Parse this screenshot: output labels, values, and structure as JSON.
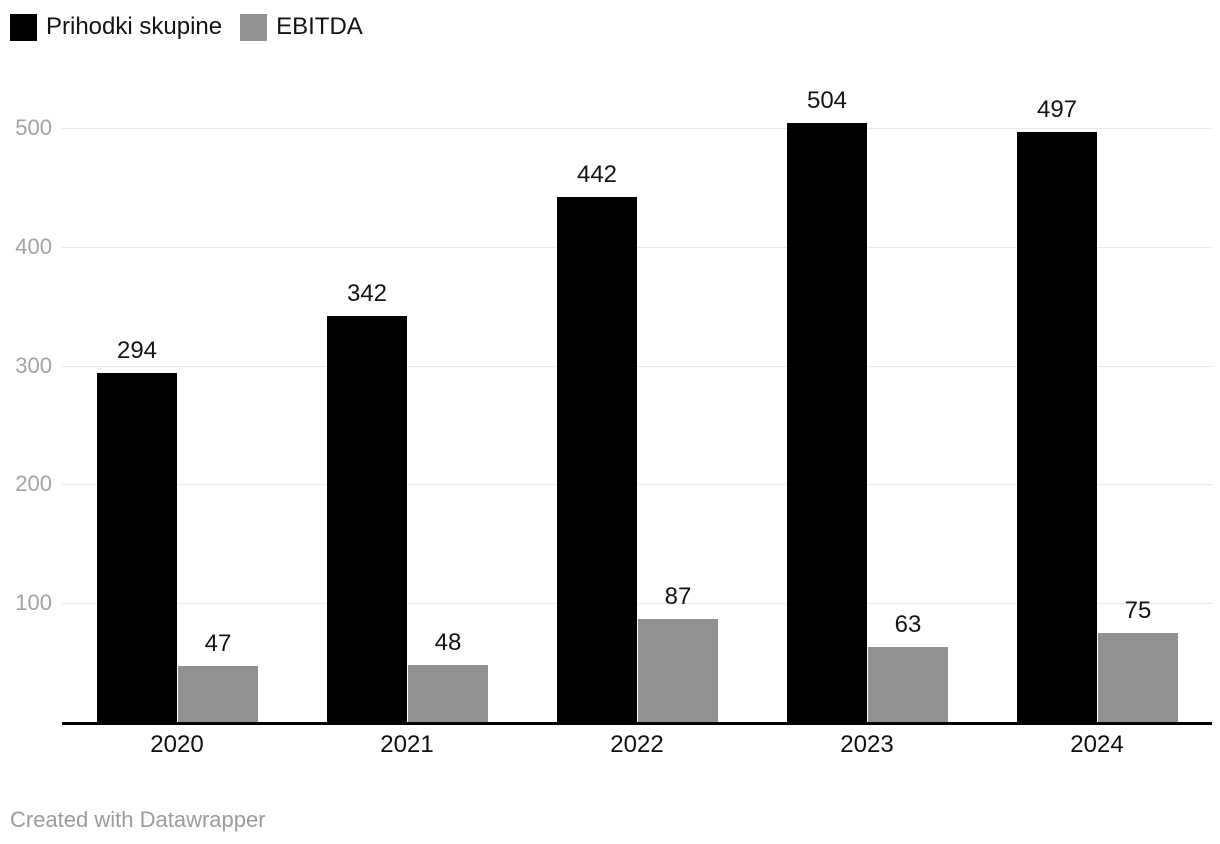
{
  "legend": {
    "items": [
      {
        "label": "Prihodki skupine",
        "color": "#000000"
      },
      {
        "label": "EBITDA",
        "color": "#919191"
      }
    ]
  },
  "footer": {
    "attribution": "Created with Datawrapper"
  },
  "colors": {
    "series_revenue": "#000000",
    "series_ebitda": "#919191",
    "gridline": "#e7e7e7",
    "y_tick_label": "#a3a3a3",
    "x_tick_label": "#101010",
    "data_label": "#141414",
    "axis_line": "#000000",
    "background": "#ffffff",
    "footer_text": "#9c9c9c"
  },
  "chart_data": {
    "type": "bar",
    "title": "",
    "xlabel": "",
    "ylabel": "",
    "categories": [
      "2020",
      "2021",
      "2022",
      "2023",
      "2024"
    ],
    "series": [
      {
        "name": "Prihodki skupine",
        "color": "#000000",
        "values": [
          294,
          342,
          442,
          504,
          497
        ]
      },
      {
        "name": "EBITDA",
        "color": "#919191",
        "values": [
          47,
          48,
          87,
          63,
          75
        ]
      }
    ],
    "yticks": [
      100,
      200,
      300,
      400,
      500
    ],
    "ylim": [
      0,
      530
    ],
    "grid": true,
    "grid_axis": "y",
    "legend_position": "top-left",
    "data_labels": true,
    "attribution": "Created with Datawrapper"
  }
}
